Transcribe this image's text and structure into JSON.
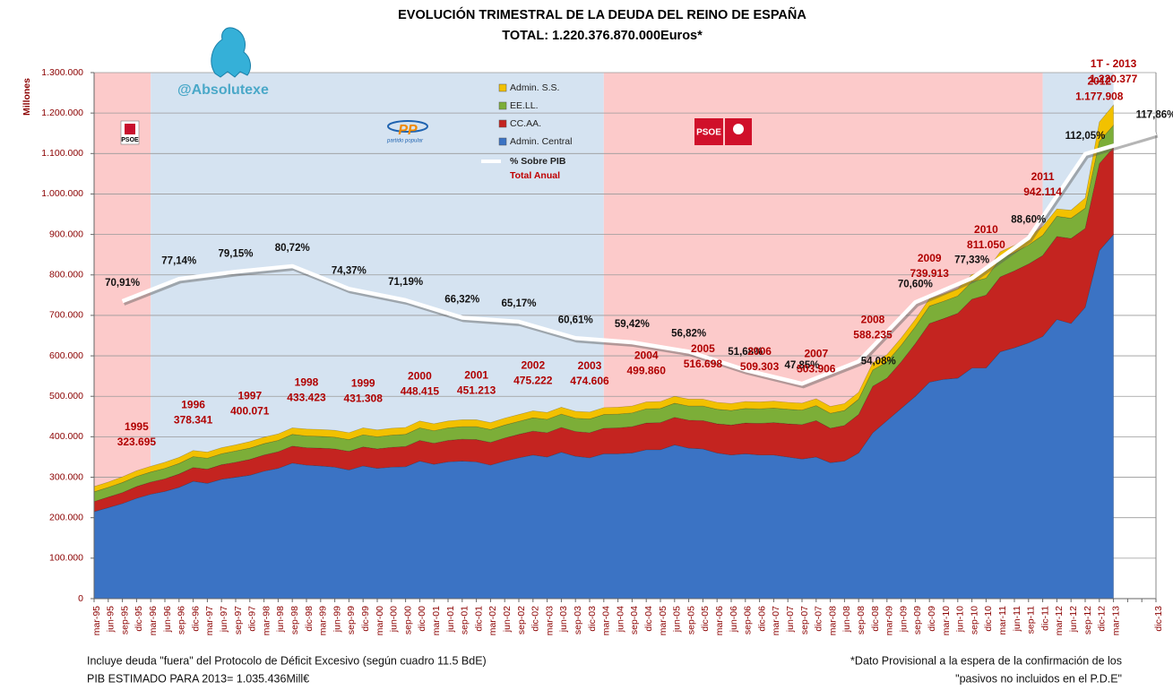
{
  "chart_data": {
    "type": "stacked-area",
    "title": "EVOLUCIÓN TRIMESTRAL DE LA DEUDA DEL REINO DE ESPAÑA",
    "subtitle": "TOTAL: 1.220.376.870.000Euros*",
    "handle": "@Absolutexe",
    "y_label": "Millones",
    "logos": {
      "psoe_small": "PSOE",
      "pp": "PP",
      "pp_sub": "partido popular",
      "psoe_large": "PSOE"
    },
    "categories": [
      "mar-95",
      "jun-95",
      "sep-95",
      "dic-95",
      "mar-96",
      "jun-96",
      "sep-96",
      "dic-96",
      "mar-97",
      "jun-97",
      "sep-97",
      "dic-97",
      "mar-98",
      "jun-98",
      "sep-98",
      "dic-98",
      "mar-99",
      "jun-99",
      "sep-99",
      "dic-99",
      "mar-00",
      "jun-00",
      "sep-00",
      "dic-00",
      "mar-01",
      "jun-01",
      "sep-01",
      "dic-01",
      "mar-02",
      "jun-02",
      "sep-02",
      "dic-02",
      "mar-03",
      "jun-03",
      "sep-03",
      "dic-03",
      "mar-04",
      "jun-04",
      "sep-04",
      "dic-04",
      "mar-05",
      "jun-05",
      "sep-05",
      "dic-05",
      "mar-06",
      "jun-06",
      "sep-06",
      "dic-06",
      "mar-07",
      "jun-07",
      "sep-07",
      "dic-07",
      "mar-08",
      "jun-08",
      "sep-08",
      "dic-08",
      "mar-09",
      "jun-09",
      "sep-09",
      "dic-09",
      "mar-10",
      "jun-10",
      "sep-10",
      "dic-10",
      "mar-11",
      "jun-11",
      "sep-11",
      "dic-11",
      "mar-12",
      "jun-12",
      "sep-12",
      "dic-12",
      "mar-13",
      null,
      null,
      "dic-13"
    ],
    "series": [
      {
        "name": "Admin. Central",
        "color": "#3b73c4",
        "values": [
          215000,
          225000,
          235000,
          248000,
          258000,
          265000,
          275000,
          290000,
          285000,
          295000,
          300000,
          305000,
          315000,
          322000,
          335000,
          330000,
          328000,
          325000,
          318000,
          328000,
          322000,
          325000,
          326000,
          340000,
          332000,
          338000,
          340000,
          338000,
          330000,
          340000,
          348000,
          355000,
          350000,
          362000,
          352000,
          348000,
          358000,
          358000,
          360000,
          368000,
          368000,
          380000,
          372000,
          370000,
          360000,
          355000,
          358000,
          355000,
          355000,
          350000,
          345000,
          350000,
          336000,
          340000,
          360000,
          410000,
          440000,
          470000,
          500000,
          535000,
          542000,
          545000,
          570000,
          570000,
          610000,
          620000,
          632000,
          648000,
          690000,
          680000,
          720000,
          860000,
          900000,
          null,
          null,
          null
        ]
      },
      {
        "name": "CC.AA.",
        "color": "#c42420",
        "values": [
          25000,
          26000,
          27000,
          29000,
          30000,
          31000,
          33000,
          34000,
          35000,
          36000,
          37000,
          39000,
          40000,
          41000,
          42000,
          43000,
          44000,
          45000,
          46000,
          47000,
          48000,
          49000,
          50000,
          51000,
          52000,
          53000,
          54000,
          55000,
          56000,
          57000,
          58000,
          59000,
          60000,
          61000,
          61000,
          62000,
          63000,
          64000,
          65000,
          66000,
          67000,
          68000,
          69000,
          70000,
          72000,
          74000,
          76000,
          78000,
          80000,
          82000,
          85000,
          90000,
          85000,
          88000,
          95000,
          115000,
          105000,
          115000,
          130000,
          145000,
          150000,
          160000,
          170000,
          180000,
          185000,
          190000,
          195000,
          200000,
          205000,
          210000,
          195000,
          215000,
          215000,
          null,
          null,
          null
        ]
      },
      {
        "name": "EE.LL.",
        "color": "#7cae38",
        "values": [
          24000,
          24000,
          25000,
          25000,
          25000,
          26000,
          26000,
          27000,
          27000,
          27000,
          28000,
          28000,
          28000,
          28000,
          29000,
          29000,
          29000,
          29000,
          29000,
          30000,
          30000,
          30000,
          30000,
          31000,
          31000,
          31000,
          31000,
          32000,
          32000,
          32000,
          32000,
          33000,
          33000,
          33000,
          33000,
          34000,
          34000,
          34000,
          34000,
          35000,
          35000,
          35000,
          35000,
          36000,
          36000,
          36000,
          36000,
          36000,
          36000,
          36000,
          36000,
          37000,
          37000,
          37000,
          38000,
          40000,
          40000,
          41000,
          42000,
          43000,
          43000,
          43000,
          43000,
          42000,
          45000,
          45000,
          47000,
          50000,
          50000,
          50000,
          50000,
          55000,
          55000,
          null,
          null,
          null
        ]
      },
      {
        "name": "Admin. S.S.",
        "color": "#f2c100",
        "values": [
          13000,
          13000,
          14000,
          14000,
          14000,
          15000,
          15000,
          15000,
          15000,
          15000,
          15000,
          16000,
          16000,
          16000,
          16000,
          17000,
          17000,
          17000,
          17000,
          17000,
          17000,
          17000,
          17000,
          17000,
          17000,
          17000,
          17000,
          17000,
          17000,
          17000,
          17000,
          17000,
          17000,
          17000,
          17000,
          17000,
          17000,
          17000,
          17000,
          17000,
          17000,
          17000,
          17000,
          17000,
          17000,
          17000,
          17000,
          17000,
          17000,
          17000,
          17000,
          17000,
          17000,
          17000,
          17000,
          18000,
          18000,
          18000,
          18000,
          18000,
          18000,
          18000,
          18000,
          17000,
          17000,
          18000,
          20000,
          22000,
          18000,
          20000,
          25000,
          48000,
          50000,
          null,
          null,
          null
        ]
      }
    ],
    "pib": {
      "name": "% Sobre PIB",
      "note": "Total Anual",
      "color": "#ffffff",
      "values": [
        70.91,
        77.14,
        79.15,
        80.72,
        74.37,
        71.19,
        66.32,
        65.17,
        60.61,
        59.42,
        56.82,
        51.68,
        47.85,
        54.08,
        70.6,
        77.33,
        88.6,
        112.05,
        117.86
      ],
      "value_labels": [
        "70,91%",
        "77,14%",
        "79,15%",
        "80,72%",
        "74,37%",
        "71,19%",
        "66,32%",
        "65,17%",
        "60,61%",
        "59,42%",
        "56,82%",
        "51,68%",
        "47,85%",
        "54,08%",
        "70,60%",
        "77,33%",
        "88,60%",
        "112,05%",
        "117,86%"
      ]
    },
    "y2lim": [
      -12.2,
      134.8
    ],
    "totals": {
      "labels": [
        "1995",
        "1996",
        "1997",
        "1998",
        "1999",
        "2000",
        "2001",
        "2002",
        "2003",
        "2004",
        "2005",
        "2006",
        "2007",
        "2008",
        "2009",
        "2010",
        "2011",
        "2012",
        "1T - 2013"
      ],
      "values": [
        323695,
        378341,
        400071,
        433423,
        431308,
        448415,
        451213,
        475222,
        474606,
        499860,
        516698,
        509303,
        503906,
        588235,
        739913,
        811050,
        942114,
        1177908,
        1220377
      ],
      "value_labels": [
        "323.695",
        "378.341",
        "400.071",
        "433.423",
        "431.308",
        "448.415",
        "451.213",
        "475.222",
        "474.606",
        "499.860",
        "516.698",
        "509.303",
        "503.906",
        "588.235",
        "739.913",
        "811.050",
        "942.114",
        "1.177.908",
        "1.220.377"
      ]
    },
    "ylim": [
      0,
      1300000
    ],
    "yticks": [
      0,
      {
        "value": 100000,
        "label": "100.000"
      },
      {
        "value": 200000,
        "label": "200.000"
      },
      {
        "value": 300000,
        "label": "300.000"
      },
      {
        "value": 400000,
        "label": "400.000"
      },
      {
        "value": 500000,
        "label": "500.000"
      },
      {
        "value": 600000,
        "label": "600.000"
      },
      {
        "value": 700000,
        "label": "700.000"
      },
      {
        "value": 800000,
        "label": "800.000"
      },
      {
        "value": 900000,
        "label": "900.000"
      },
      {
        "value": 1000000,
        "label": "1.000.000"
      },
      {
        "value": 1100000,
        "label": "1.100.000"
      },
      {
        "value": 1200000,
        "label": "1.200.000"
      },
      {
        "value": 1300000,
        "label": "1.300.000"
      }
    ],
    "grid": true,
    "footnotes_left": [
      "Incluye deuda  \"fuera\" del Protocolo de Déficit Excesivo (según cuadro 11.5 BdE)",
      "PIB ESTIMADO PARA 2013= 1.035.436Mill€"
    ],
    "footnotes_right": [
      "*Dato Provisional a la espera de la confirmación de los",
      "\"pasivos no incluidos en el P.D.E\""
    ]
  }
}
